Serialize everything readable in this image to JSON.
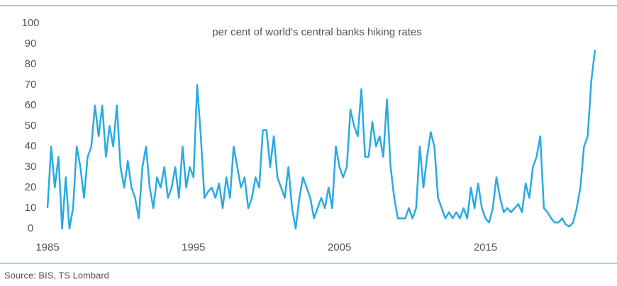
{
  "chart_data": {
    "type": "line",
    "title": "per cent of world's central banks hiking rates",
    "source": "Source: BIS, TS Lombard",
    "x": [
      1985,
      1985.25,
      1985.5,
      1985.75,
      1986,
      1986.25,
      1986.5,
      1986.75,
      1987,
      1987.25,
      1987.5,
      1987.75,
      1988,
      1988.25,
      1988.5,
      1988.75,
      1989,
      1989.25,
      1989.5,
      1989.75,
      1990,
      1990.25,
      1990.5,
      1990.75,
      1991,
      1991.25,
      1991.5,
      1991.75,
      1992,
      1992.25,
      1992.5,
      1992.75,
      1993,
      1993.25,
      1993.5,
      1993.75,
      1994,
      1994.25,
      1994.5,
      1994.75,
      1995,
      1995.25,
      1995.5,
      1995.75,
      1996,
      1996.25,
      1996.5,
      1996.75,
      1997,
      1997.25,
      1997.5,
      1997.75,
      1998,
      1998.25,
      1998.5,
      1998.75,
      1999,
      1999.25,
      1999.5,
      1999.75,
      2000,
      2000.25,
      2000.5,
      2000.75,
      2001,
      2001.25,
      2001.5,
      2001.75,
      2002,
      2002.25,
      2002.5,
      2002.75,
      2003,
      2003.25,
      2003.5,
      2003.75,
      2004,
      2004.25,
      2004.5,
      2004.75,
      2005,
      2005.25,
      2005.5,
      2005.75,
      2006,
      2006.25,
      2006.5,
      2006.75,
      2007,
      2007.25,
      2007.5,
      2007.75,
      2008,
      2008.25,
      2008.5,
      2008.75,
      2009,
      2009.25,
      2009.5,
      2009.75,
      2010,
      2010.25,
      2010.5,
      2010.75,
      2011,
      2011.25,
      2011.5,
      2011.75,
      2012,
      2012.25,
      2012.5,
      2012.75,
      2013,
      2013.25,
      2013.5,
      2013.75,
      2014,
      2014.25,
      2014.5,
      2014.75,
      2015,
      2015.25,
      2015.5,
      2015.75,
      2016,
      2016.25,
      2016.5,
      2016.75,
      2017,
      2017.25,
      2017.5,
      2017.75,
      2018,
      2018.25,
      2018.5,
      2018.75,
      2019,
      2019.25,
      2019.5,
      2019.75,
      2020,
      2020.25,
      2020.5,
      2020.75,
      2021,
      2021.25,
      2021.5,
      2021.75,
      2022,
      2022.25,
      2022.5
    ],
    "series": [
      {
        "color": "#29aae2",
        "values": [
          10,
          40,
          20,
          35,
          0,
          25,
          0,
          10,
          40,
          30,
          15,
          35,
          40,
          60,
          45,
          60,
          35,
          50,
          40,
          60,
          30,
          20,
          33,
          20,
          15,
          5,
          30,
          40,
          20,
          10,
          25,
          20,
          30,
          15,
          20,
          30,
          15,
          40,
          20,
          30,
          25,
          70,
          45,
          15,
          18,
          20,
          15,
          22,
          10,
          25,
          15,
          40,
          30,
          20,
          25,
          10,
          15,
          25,
          20,
          48,
          48,
          30,
          45,
          25,
          20,
          15,
          30,
          10,
          0,
          15,
          25,
          20,
          15,
          5,
          10,
          15,
          10,
          20,
          10,
          40,
          30,
          25,
          30,
          58,
          50,
          45,
          68,
          35,
          35,
          52,
          40,
          45,
          35,
          63,
          30,
          15,
          5,
          5,
          5,
          10,
          5,
          10,
          40,
          20,
          35,
          47,
          40,
          15,
          10,
          5,
          8,
          5,
          8,
          5,
          10,
          5,
          20,
          10,
          22,
          10,
          5,
          3,
          10,
          25,
          15,
          8,
          10,
          8,
          10,
          12,
          8,
          22,
          15,
          30,
          35,
          45,
          10,
          8,
          5,
          3,
          3,
          5,
          2,
          1,
          3,
          10,
          20,
          40,
          45,
          72,
          87
        ]
      }
    ],
    "xlim": [
      1985,
      2022.6
    ],
    "xticks": [
      1985,
      1995,
      2005,
      2015
    ],
    "ylim": [
      0,
      100
    ],
    "yticks": [
      0,
      10,
      20,
      30,
      40,
      50,
      60,
      70,
      80,
      90,
      100
    ]
  }
}
